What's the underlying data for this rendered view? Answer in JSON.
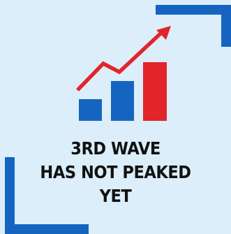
{
  "caption": {
    "line1": "3RD WAVE",
    "line2": "HAS NOT PEAKED",
    "line3": "YET"
  },
  "icon": {
    "name": "rising-bar-chart-arrow-icon",
    "colors": {
      "background": "#dceefa",
      "frame": "#1565c0",
      "bar_blue": "#1565c0",
      "bar_red": "#e3242b",
      "arrow": "#e3242b",
      "text": "#111111"
    }
  }
}
